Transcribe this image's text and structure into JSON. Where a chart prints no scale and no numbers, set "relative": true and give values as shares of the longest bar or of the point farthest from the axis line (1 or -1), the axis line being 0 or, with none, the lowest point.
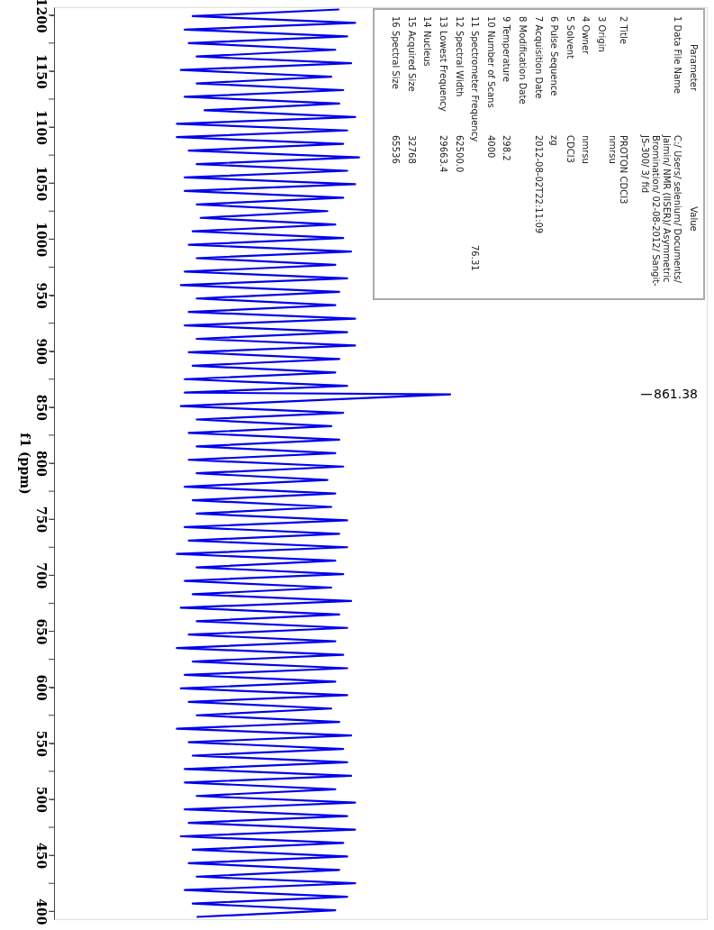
{
  "chart_data": {
    "type": "line",
    "relative": true,
    "orientation": "horizontal",
    "ylabel": "f1 (ppm)",
    "ylim": [
      393,
      1207
    ],
    "yticks": [
      1200,
      {
        "value": 1175,
        "label": null
      },
      1150,
      {
        "value": 1125,
        "label": null
      },
      1100,
      {
        "value": 1075,
        "label": null
      },
      1050,
      {
        "value": 1025,
        "label": null
      },
      1000,
      {
        "value": 975,
        "label": null
      },
      950,
      {
        "value": 925,
        "label": null
      },
      900,
      {
        "value": 875,
        "label": null
      },
      850,
      {
        "value": 825,
        "label": null
      },
      800,
      {
        "value": 775,
        "label": null
      },
      750,
      {
        "value": 725,
        "label": null
      },
      700,
      {
        "value": 675,
        "label": null
      },
      650,
      {
        "value": 625,
        "label": null
      },
      600,
      {
        "value": 575,
        "label": null
      },
      550,
      {
        "value": 525,
        "label": null
      },
      500,
      {
        "value": 475,
        "label": null
      },
      450,
      {
        "value": 425,
        "label": null
      },
      400
    ],
    "series": [
      {
        "color": "#0000ee",
        "x": [
          1205,
          1199,
          1193,
          1187,
          1181,
          1175,
          1169,
          1163,
          1157,
          1151,
          1145,
          1139,
          1133,
          1127,
          1121,
          1115,
          1109,
          1103,
          1097,
          1091,
          1085,
          1079,
          1073,
          1067,
          1061,
          1055,
          1049,
          1043,
          1037,
          1031,
          1025,
          1019,
          1013,
          1007,
          1001,
          995,
          989,
          983,
          977,
          971,
          965,
          959,
          953,
          947,
          941,
          935,
          929,
          923,
          917,
          911,
          905,
          899,
          893,
          887,
          881,
          875,
          869,
          863,
          861.38,
          857,
          851,
          845,
          839,
          833,
          827,
          821,
          815,
          809,
          803,
          797,
          791,
          785,
          779,
          773,
          767,
          761,
          755,
          749,
          743,
          737,
          731,
          725,
          719,
          713,
          707,
          701,
          695,
          689,
          683,
          677,
          671,
          665,
          659,
          653,
          647,
          641,
          635,
          629,
          623,
          617,
          611,
          605,
          599,
          593,
          587,
          581,
          575,
          569,
          563,
          557,
          551,
          545,
          539,
          533,
          527,
          521,
          515,
          509,
          503,
          497,
          491,
          485,
          479,
          473,
          467,
          461,
          455,
          449,
          443,
          437,
          431,
          425,
          419,
          413,
          407,
          401,
          395
        ],
        "values": [
          0.72,
          0.35,
          0.76,
          0.33,
          0.74,
          0.34,
          0.71,
          0.36,
          0.75,
          0.32,
          0.7,
          0.36,
          0.73,
          0.33,
          0.72,
          0.38,
          0.76,
          0.31,
          0.74,
          0.31,
          0.73,
          0.34,
          0.77,
          0.36,
          0.74,
          0.33,
          0.76,
          0.33,
          0.73,
          0.36,
          0.69,
          0.37,
          0.71,
          0.35,
          0.73,
          0.34,
          0.75,
          0.36,
          0.71,
          0.33,
          0.74,
          0.32,
          0.72,
          0.36,
          0.71,
          0.34,
          0.76,
          0.33,
          0.74,
          0.36,
          0.76,
          0.34,
          0.72,
          0.35,
          0.71,
          0.33,
          0.74,
          0.33,
          1,
          0.71,
          0.32,
          0.73,
          0.36,
          0.7,
          0.34,
          0.72,
          0.36,
          0.71,
          0.34,
          0.73,
          0.36,
          0.69,
          0.33,
          0.71,
          0.35,
          0.7,
          0.36,
          0.74,
          0.33,
          0.72,
          0.34,
          0.74,
          0.31,
          0.71,
          0.36,
          0.73,
          0.33,
          0.7,
          0.35,
          0.75,
          0.32,
          0.72,
          0.36,
          0.74,
          0.34,
          0.71,
          0.31,
          0.73,
          0.35,
          0.74,
          0.33,
          0.71,
          0.32,
          0.74,
          0.34,
          0.7,
          0.36,
          0.72,
          0.31,
          0.75,
          0.34,
          0.73,
          0.35,
          0.74,
          0.33,
          0.75,
          0.33,
          0.71,
          0.36,
          0.76,
          0.33,
          0.74,
          0.34,
          0.76,
          0.32,
          0.73,
          0.35,
          0.74,
          0.34,
          0.72,
          0.36,
          0.76,
          0.33,
          0.74,
          0.35,
          0.71,
          0.36
        ]
      }
    ],
    "annotations": [
      "Parameter",
      "Value",
      "1 Data File Name",
      "C:/ Users/ selenium/ Documents/",
      "Jaimin/ NMR (IISER)/ Asymmetric",
      "Bromination/ 02-08-2012/ Sangit-",
      "JS-300/ 3/ fid",
      "2 Title",
      "PROTON CDCl3",
      "nmrsu",
      "3 Origin",
      "4 Owner",
      "nmrsu",
      "5 Solvent",
      "CDCl3",
      "6 Pulse Sequence",
      "zg",
      "7 Acquisition Date",
      "2012-08-02T22:11:09",
      "8 Modification Date",
      "9 Temperature",
      "298.2",
      "10 Number of Scans",
      "4000",
      "11 Spectrometer Frequency",
      "76.31",
      "12 Spectral Width",
      "62500.0",
      "13 Lowest Frequency",
      "29663.4",
      "14 Nucleus",
      "15 Acquired Size",
      "32768",
      "16 Spectral Size",
      "65536",
      "861.38"
    ]
  }
}
